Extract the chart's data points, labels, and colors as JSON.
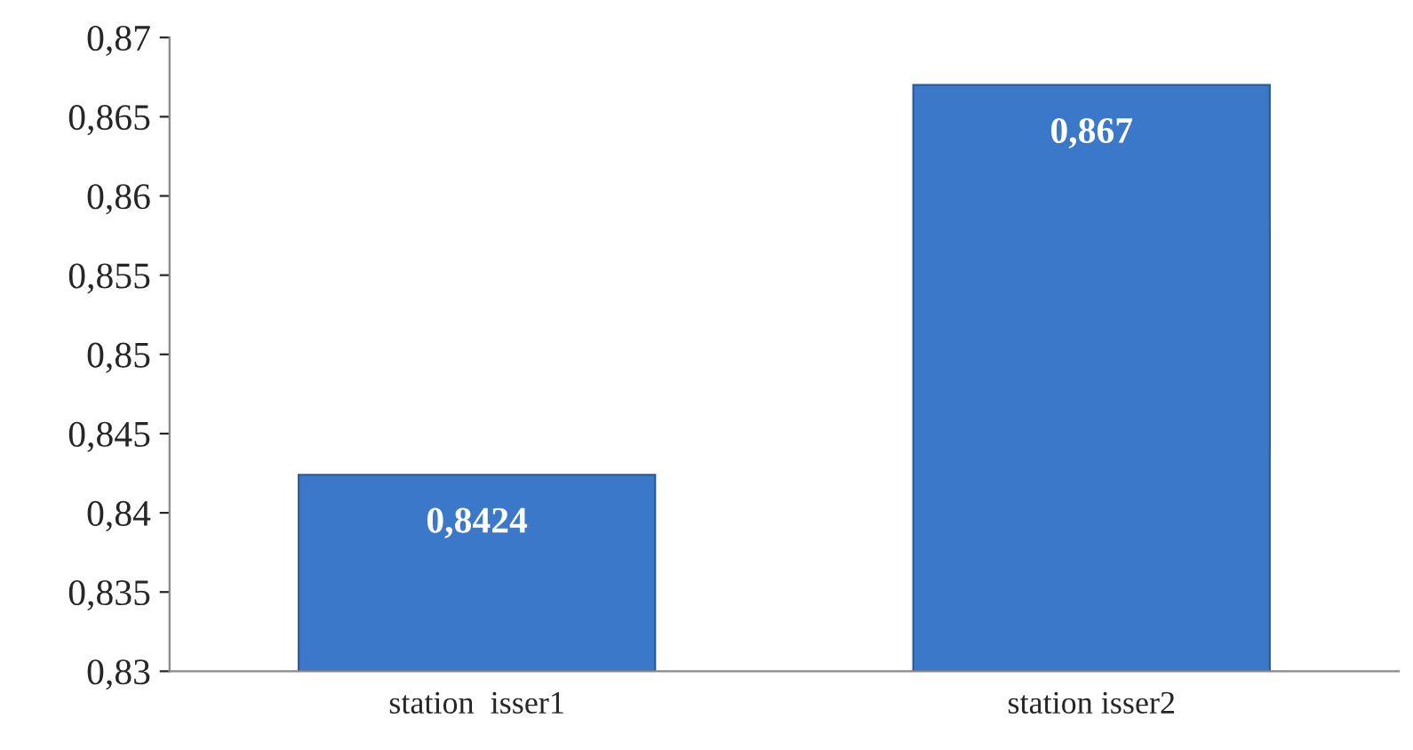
{
  "chart_data": {
    "type": "bar",
    "categories": [
      "station  isser1",
      "station isser2"
    ],
    "values": [
      0.8424,
      0.867
    ],
    "value_labels": [
      "0,8424",
      "0,867"
    ],
    "color": "#3b78c9",
    "ylim": [
      0.83,
      0.87
    ],
    "yticks": [
      {
        "value": 0.83,
        "label": "0,83"
      },
      {
        "value": 0.835,
        "label": "0,835"
      },
      {
        "value": 0.84,
        "label": "0,84"
      },
      {
        "value": 0.845,
        "label": "0,845"
      },
      {
        "value": 0.85,
        "label": "0,85"
      },
      {
        "value": 0.855,
        "label": "0,855"
      },
      {
        "value": 0.86,
        "label": "0,86"
      },
      {
        "value": 0.865,
        "label": "0,865"
      },
      {
        "value": 0.87,
        "label": "0,87"
      }
    ],
    "grid": false,
    "legend": false
  }
}
